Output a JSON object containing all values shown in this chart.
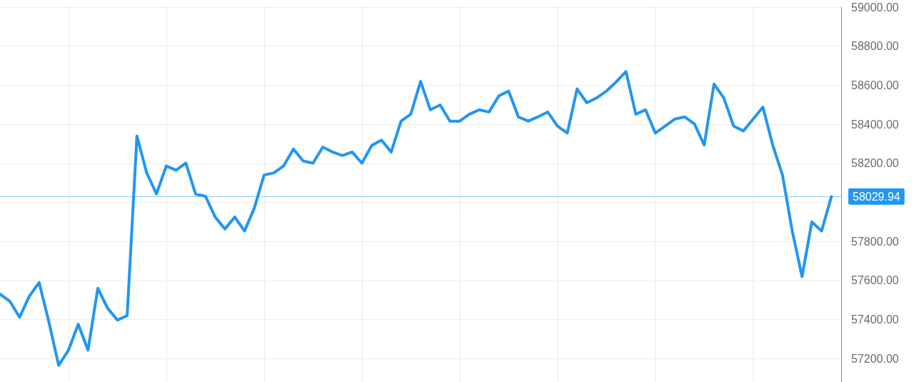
{
  "chart_data": {
    "type": "line",
    "categories": [
      null,
      null,
      null,
      null,
      null,
      null,
      null,
      null,
      null,
      null,
      null,
      null,
      null,
      null,
      null,
      null,
      null,
      null,
      null,
      null,
      null,
      null,
      null,
      null,
      null,
      null,
      null,
      null,
      null,
      null,
      null,
      null,
      null,
      null,
      null,
      null,
      null,
      null,
      null,
      null,
      null,
      null,
      null,
      null,
      null,
      null,
      null,
      null,
      null,
      null,
      null,
      null,
      null,
      null,
      null,
      null,
      null,
      null,
      null,
      null,
      null,
      null,
      null,
      null,
      null,
      null,
      null,
      null,
      null,
      null,
      null,
      null,
      null,
      null,
      null,
      null,
      null,
      null,
      null,
      null,
      null,
      null,
      null,
      null,
      null,
      null,
      null
    ],
    "series": [
      {
        "color": "#2196f3",
        "values": [
          57530,
          57494,
          57412,
          57519,
          57590,
          57387,
          57165,
          57243,
          57376,
          57243,
          57560,
          57458,
          57397,
          57420,
          58340,
          58151,
          58043,
          58187,
          58165,
          58201,
          58043,
          58032,
          57925,
          57864,
          57925,
          57853,
          57971,
          58140,
          58151,
          58187,
          58273,
          58212,
          58201,
          58283,
          58258,
          58240,
          58258,
          58201,
          58291,
          58319,
          58258,
          58416,
          58452,
          58620,
          58474,
          58499,
          58416,
          58416,
          58452,
          58474,
          58463,
          58545,
          58570,
          58438,
          58416,
          58438,
          58463,
          58391,
          58355,
          58581,
          58510,
          58535,
          58570,
          58617,
          58670,
          58452,
          58474,
          58355,
          58391,
          58427,
          58438,
          58402,
          58294,
          58606,
          58535,
          58391,
          58366,
          58427,
          58488,
          58294,
          58140,
          57853,
          57620,
          57900,
          57853,
          58030,
          null
        ]
      }
    ],
    "ylim": [
      57080,
      59000
    ],
    "yticks": [
      {
        "value": 57200,
        "label": "57200.00"
      },
      {
        "value": 57400,
        "label": "57400.00"
      },
      {
        "value": 57600,
        "label": "57600.00"
      },
      {
        "value": 57800,
        "label": "57800.00"
      },
      {
        "value": 58000,
        "label": null
      },
      {
        "value": 58200,
        "label": "58200.00"
      },
      {
        "value": 58400,
        "label": "58400.00"
      },
      {
        "value": 58600,
        "label": "58600.00"
      },
      {
        "value": 58800,
        "label": "58800.00"
      },
      {
        "value": 59000,
        "label": "59000.00"
      }
    ],
    "grid": true,
    "marker": "none",
    "line_style": "solid",
    "tick_labels": "y",
    "ref_lines": [
      {
        "axis": "y",
        "value": 58029.94,
        "label": "58029.94",
        "color": "#2196f3",
        "line_style": "dotted"
      }
    ]
  }
}
